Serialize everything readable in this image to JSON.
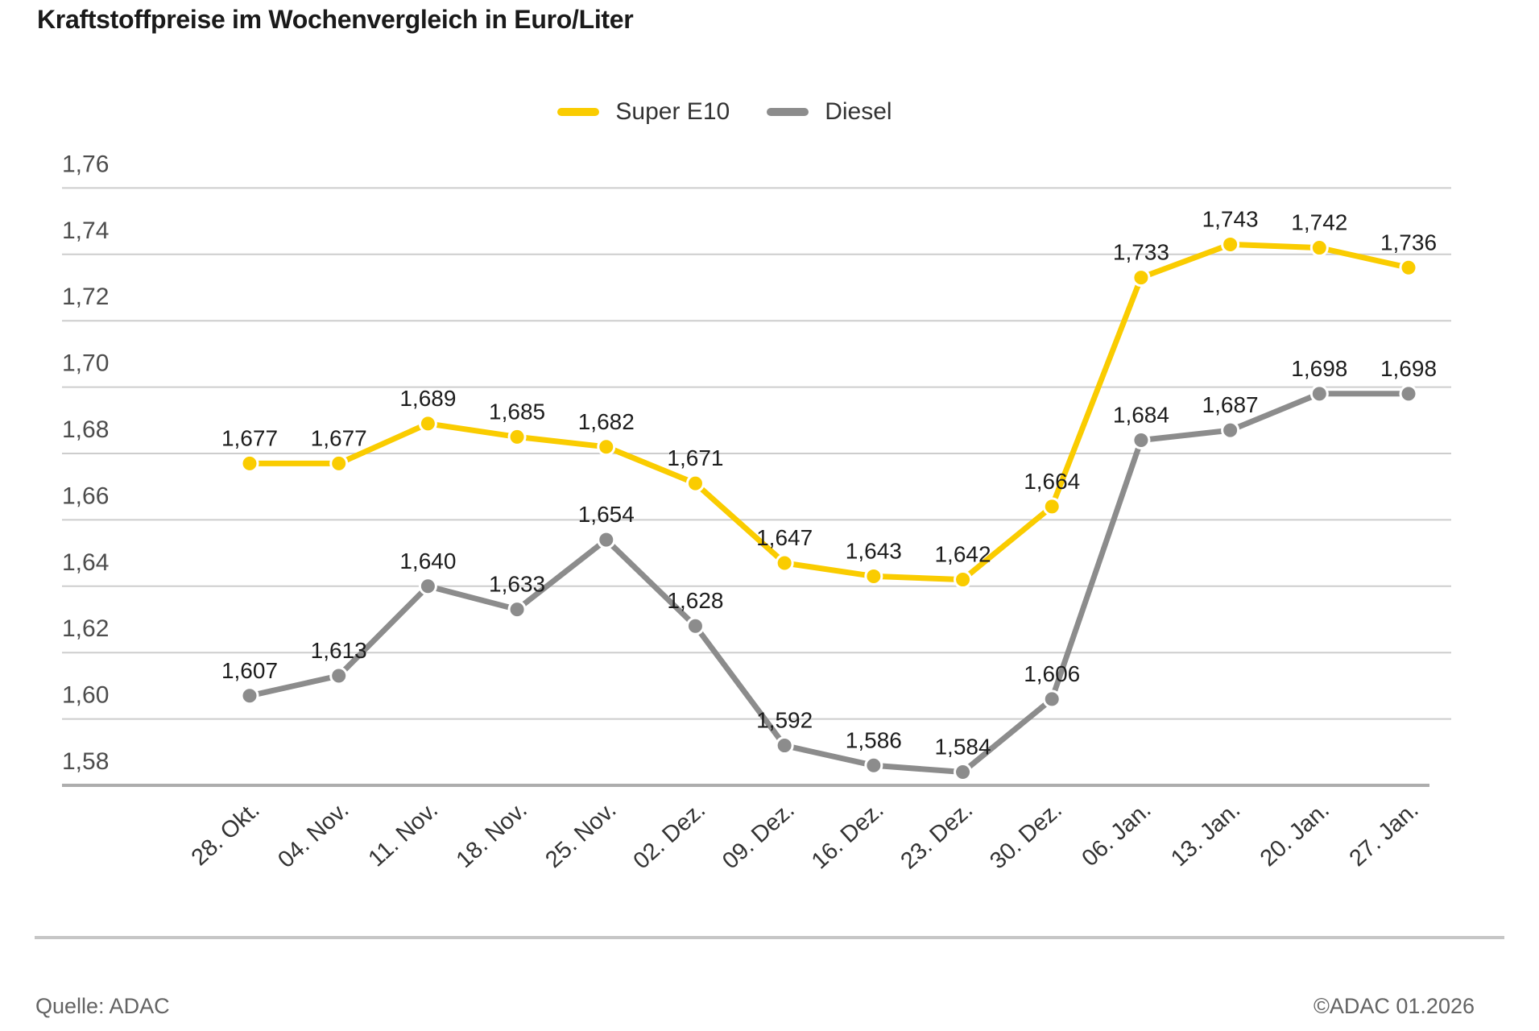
{
  "title": "Kraftstoffpreise im Wochenvergleich in Euro/Liter",
  "footer": {
    "source": "Quelle: ADAC",
    "copyright": "©ADAC 01.2026"
  },
  "colors": {
    "super_e10": "#FACC00",
    "diesel": "#8C8C8C",
    "grid": "#CDCDCD",
    "axis": "#ADADAD",
    "point_label": "#1d1d1d",
    "ytick": "#4d4d4d",
    "xtick": "#333333",
    "marker_stroke": "#ffffff"
  },
  "chart_data": {
    "type": "line",
    "title": "Kraftstoffpreise im Wochenvergleich in Euro/Liter",
    "xlabel": "",
    "ylabel": "Euro/Liter",
    "ylim": [
      1.58,
      1.76
    ],
    "ytick_step": 0.02,
    "ytick_labels": [
      "1,58",
      "1,60",
      "1,62",
      "1,64",
      "1,66",
      "1,68",
      "1,70",
      "1,72",
      "1,74",
      "1,76"
    ],
    "grid": true,
    "legend_position": "top-center",
    "categories": [
      "28. Okt.",
      "04. Nov.",
      "11. Nov.",
      "18. Nov.",
      "25. Nov.",
      "02. Dez.",
      "09. Dez.",
      "16. Dez.",
      "23. Dez.",
      "30. Dez.",
      "06. Jan.",
      "13. Jan.",
      "20. Jan.",
      "27. Jan."
    ],
    "series": [
      {
        "name": "Super E10",
        "color": "#FACC00",
        "values": [
          1.677,
          1.677,
          1.689,
          1.685,
          1.682,
          1.671,
          1.647,
          1.643,
          1.642,
          1.664,
          1.733,
          1.743,
          1.742,
          1.736
        ],
        "point_labels": [
          "1,677",
          "1,677",
          "1,689",
          "1,685",
          "1,682",
          "1,671",
          "1,647",
          "1,643",
          "1,642",
          "1,664",
          "1,733",
          "1,743",
          "1,742",
          "1,736"
        ]
      },
      {
        "name": "Diesel",
        "color": "#8C8C8C",
        "values": [
          1.607,
          1.613,
          1.64,
          1.633,
          1.654,
          1.628,
          1.592,
          1.586,
          1.584,
          1.606,
          1.684,
          1.687,
          1.698,
          1.698
        ],
        "point_labels": [
          "1,607",
          "1,613",
          "1,640",
          "1,633",
          "1,654",
          "1,628",
          "1,592",
          "1,586",
          "1,584",
          "1,606",
          "1,684",
          "1,687",
          "1,698",
          "1,698"
        ]
      }
    ]
  }
}
